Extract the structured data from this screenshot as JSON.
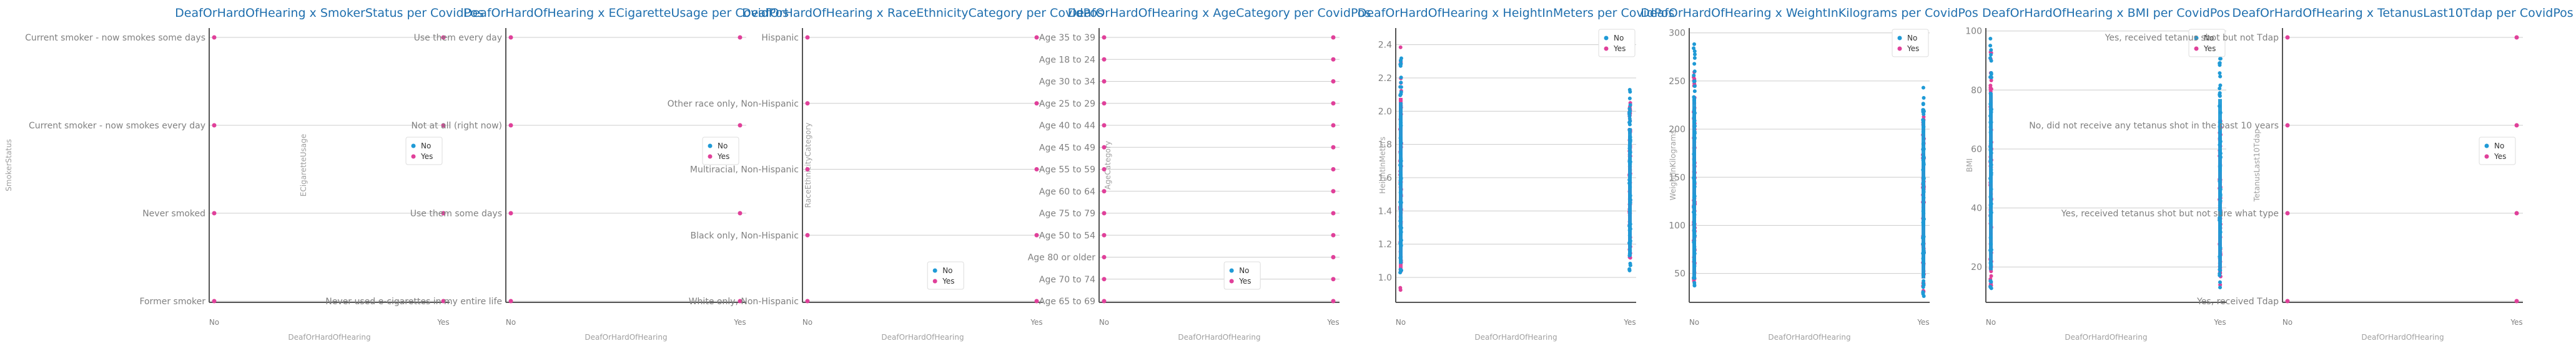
{
  "colors": {
    "No": "#1f9ad6",
    "Yes": "#e0409a",
    "grid": "#cccccc",
    "axis": "#555555",
    "title": "#1f6fae"
  },
  "chart_data": [
    {
      "type": "scatter",
      "title": "DeafOrHardOfHearing x SmokerStatus per CovidPos",
      "xlabel": "DeafOrHardOfHearing",
      "ylabel": "SmokerStatus",
      "x_categories": [
        "No",
        "Yes"
      ],
      "y_categories": [
        "Former smoker",
        "Never smoked",
        "Current smoker - now smokes every day",
        "Current smoker - now smokes some days"
      ],
      "legend": [
        "No",
        "Yes"
      ],
      "legend_position": "right",
      "points": [
        {
          "x": "No",
          "y": "Current smoker - now smokes some days",
          "series": "Yes"
        },
        {
          "x": "No",
          "y": "Current smoker - now smokes every day",
          "series": "Yes"
        },
        {
          "x": "No",
          "y": "Never smoked",
          "series": "Yes"
        },
        {
          "x": "No",
          "y": "Former smoker",
          "series": "Yes"
        },
        {
          "x": "Yes",
          "y": "Current smoker - now smokes some days",
          "series": "Yes"
        },
        {
          "x": "Yes",
          "y": "Current smoker - now smokes every day",
          "series": "Yes"
        },
        {
          "x": "Yes",
          "y": "Never smoked",
          "series": "Yes"
        },
        {
          "x": "Yes",
          "y": "Former smoker",
          "series": "Yes"
        }
      ]
    },
    {
      "type": "scatter",
      "title": "DeafOrHardOfHearing x ECigaretteUsage per CovidPos",
      "xlabel": "DeafOrHardOfHearing",
      "ylabel": "ECigaretteUsage",
      "x_categories": [
        "No",
        "Yes"
      ],
      "y_categories": [
        "Never used e-cigarettes in my entire life",
        "Use them some days",
        "Not at all (right now)",
        "Use them every day"
      ],
      "legend": [
        "No",
        "Yes"
      ],
      "legend_position": "right",
      "points": [
        {
          "x": "No",
          "y": "Use them every day",
          "series": "Yes"
        },
        {
          "x": "No",
          "y": "Not at all (right now)",
          "series": "Yes"
        },
        {
          "x": "No",
          "y": "Use them some days",
          "series": "Yes"
        },
        {
          "x": "No",
          "y": "Never used e-cigarettes in my entire life",
          "series": "Yes"
        },
        {
          "x": "Yes",
          "y": "Use them every day",
          "series": "Yes"
        },
        {
          "x": "Yes",
          "y": "Not at all (right now)",
          "series": "Yes"
        },
        {
          "x": "Yes",
          "y": "Use them some days",
          "series": "Yes"
        },
        {
          "x": "Yes",
          "y": "Never used e-cigarettes in my entire life",
          "series": "Yes"
        }
      ]
    },
    {
      "type": "scatter",
      "title": "DeafOrHardOfHearing x RaceEthnicityCategory per CovidPos",
      "xlabel": "DeafOrHardOfHearing",
      "ylabel": "RaceEthnicityCategory",
      "x_categories": [
        "No",
        "Yes"
      ],
      "y_categories": [
        "White only, Non-Hispanic",
        "Black only, Non-Hispanic",
        "Multiracial, Non-Hispanic",
        "Other race only, Non-Hispanic",
        "Hispanic"
      ],
      "legend": [
        "No",
        "Yes"
      ],
      "legend_position": "right",
      "points": [
        {
          "x": "No",
          "y": "Hispanic",
          "series": "Yes"
        },
        {
          "x": "No",
          "y": "Other race only, Non-Hispanic",
          "series": "Yes"
        },
        {
          "x": "No",
          "y": "Multiracial, Non-Hispanic",
          "series": "Yes"
        },
        {
          "x": "No",
          "y": "Black only, Non-Hispanic",
          "series": "Yes"
        },
        {
          "x": "No",
          "y": "White only, Non-Hispanic",
          "series": "Yes"
        },
        {
          "x": "Yes",
          "y": "Hispanic",
          "series": "Yes"
        },
        {
          "x": "Yes",
          "y": "Other race only, Non-Hispanic",
          "series": "Yes"
        },
        {
          "x": "Yes",
          "y": "Multiracial, Non-Hispanic",
          "series": "Yes"
        },
        {
          "x": "Yes",
          "y": "Black only, Non-Hispanic",
          "series": "Yes"
        },
        {
          "x": "Yes",
          "y": "White only, Non-Hispanic",
          "series": "Yes"
        }
      ]
    },
    {
      "type": "scatter",
      "title": "DeafOrHardOfHearing x AgeCategory per CovidPos",
      "xlabel": "DeafOrHardOfHearing",
      "ylabel": "AgeCategory",
      "x_categories": [
        "No",
        "Yes"
      ],
      "y_categories": [
        "Age 65 to 69",
        "Age 70 to 74",
        "Age 80 or older",
        "Age 50 to 54",
        "Age 75 to 79",
        "Age 60 to 64",
        "Age 55 to 59",
        "Age 45 to 49",
        "Age 40 to 44",
        "Age 25 to 29",
        "Age 30 to 34",
        "Age 18 to 24",
        "Age 35 to 39"
      ],
      "legend": [
        "No",
        "Yes"
      ],
      "legend_position": "lower right",
      "points": [
        {
          "x": "No",
          "y": "Age 35 to 39",
          "series": "Yes"
        },
        {
          "x": "No",
          "y": "Age 18 to 24",
          "series": "Yes"
        },
        {
          "x": "No",
          "y": "Age 30 to 34",
          "series": "Yes"
        },
        {
          "x": "No",
          "y": "Age 25 to 29",
          "series": "Yes"
        },
        {
          "x": "No",
          "y": "Age 40 to 44",
          "series": "Yes"
        },
        {
          "x": "No",
          "y": "Age 45 to 49",
          "series": "Yes"
        },
        {
          "x": "No",
          "y": "Age 55 to 59",
          "series": "Yes"
        },
        {
          "x": "No",
          "y": "Age 60 to 64",
          "series": "Yes"
        },
        {
          "x": "No",
          "y": "Age 75 to 79",
          "series": "Yes"
        },
        {
          "x": "No",
          "y": "Age 50 to 54",
          "series": "Yes"
        },
        {
          "x": "No",
          "y": "Age 80 or older",
          "series": "Yes"
        },
        {
          "x": "No",
          "y": "Age 70 to 74",
          "series": "Yes"
        },
        {
          "x": "No",
          "y": "Age 65 to 69",
          "series": "Yes"
        },
        {
          "x": "Yes",
          "y": "Age 35 to 39",
          "series": "Yes"
        },
        {
          "x": "Yes",
          "y": "Age 18 to 24",
          "series": "Yes"
        },
        {
          "x": "Yes",
          "y": "Age 30 to 34",
          "series": "Yes"
        },
        {
          "x": "Yes",
          "y": "Age 25 to 29",
          "series": "Yes"
        },
        {
          "x": "Yes",
          "y": "Age 40 to 44",
          "series": "Yes"
        },
        {
          "x": "Yes",
          "y": "Age 45 to 49",
          "series": "Yes"
        },
        {
          "x": "Yes",
          "y": "Age 55 to 59",
          "series": "Yes"
        },
        {
          "x": "Yes",
          "y": "Age 60 to 64",
          "series": "Yes"
        },
        {
          "x": "Yes",
          "y": "Age 75 to 79",
          "series": "Yes"
        },
        {
          "x": "Yes",
          "y": "Age 50 to 54",
          "series": "Yes"
        },
        {
          "x": "Yes",
          "y": "Age 80 or older",
          "series": "Yes"
        },
        {
          "x": "Yes",
          "y": "Age 70 to 74",
          "series": "Yes"
        },
        {
          "x": "Yes",
          "y": "Age 65 to 69",
          "series": "Yes"
        }
      ]
    },
    {
      "type": "scatter",
      "title": "DeafOrHardOfHearing x HeightInMeters per CovidPos",
      "xlabel": "DeafOrHardOfHearing",
      "ylabel": "HeightInMeters",
      "x_categories": [
        "No",
        "Yes"
      ],
      "y_ticks": [
        "1.0",
        "1.2",
        "1.4",
        "1.6",
        "1.8",
        "2.0",
        "2.2",
        "2.4"
      ],
      "ylim": [
        0.85,
        2.5
      ],
      "legend": [
        "No",
        "Yes"
      ],
      "legend_position": "upper right",
      "columns": [
        {
          "x": "No",
          "series": "Yes",
          "min": 0.91,
          "max": 2.41
        },
        {
          "x": "No",
          "series": "No",
          "min": 0.97,
          "max": 2.36
        },
        {
          "x": "Yes",
          "series": "Yes",
          "min": 1.11,
          "max": 2.06
        },
        {
          "x": "Yes",
          "series": "No",
          "min": 1.04,
          "max": 2.14
        }
      ]
    },
    {
      "type": "scatter",
      "title": "DeafOrHardOfHearing x WeightInKilograms per CovidPos",
      "xlabel": "DeafOrHardOfHearing",
      "ylabel": "WeightInKilograms",
      "x_categories": [
        "No",
        "Yes"
      ],
      "y_ticks": [
        "50",
        "100",
        "150",
        "200",
        "250",
        "300"
      ],
      "ylim": [
        20,
        305
      ],
      "legend": [
        "No",
        "Yes"
      ],
      "legend_position": "upper right",
      "columns": [
        {
          "x": "No",
          "series": "Yes",
          "min": 28,
          "max": 275
        },
        {
          "x": "No",
          "series": "No",
          "min": 24,
          "max": 292
        },
        {
          "x": "Yes",
          "series": "Yes",
          "min": 30,
          "max": 215
        },
        {
          "x": "Yes",
          "series": "No",
          "min": 26,
          "max": 262
        }
      ]
    },
    {
      "type": "scatter",
      "title": "DeafOrHardOfHearing x BMI per CovidPos",
      "xlabel": "DeafOrHardOfHearing",
      "ylabel": "BMI",
      "x_categories": [
        "No",
        "Yes"
      ],
      "y_ticks": [
        "20",
        "40",
        "60",
        "80",
        "100"
      ],
      "ylim": [
        8,
        101
      ],
      "legend": [
        "No",
        "Yes"
      ],
      "legend_position": "upper right",
      "columns": [
        {
          "x": "No",
          "series": "Yes",
          "min": 12,
          "max": 97
        },
        {
          "x": "No",
          "series": "No",
          "min": 12,
          "max": 98
        },
        {
          "x": "Yes",
          "series": "Yes",
          "min": 13,
          "max": 70
        },
        {
          "x": "Yes",
          "series": "No",
          "min": 13,
          "max": 95
        }
      ]
    },
    {
      "type": "scatter",
      "title": "DeafOrHardOfHearing x TetanusLast10Tdap per CovidPos",
      "xlabel": "DeafOrHardOfHearing",
      "ylabel": "TetanusLast10Tdap",
      "x_categories": [
        "No",
        "Yes"
      ],
      "y_categories": [
        "Yes, received Tdap",
        "Yes, received tetanus shot but not sure what type",
        "No, did not receive any tetanus shot in the past 10 years",
        "Yes, received tetanus shot but not Tdap"
      ],
      "legend": [
        "No",
        "Yes"
      ],
      "legend_position": "right",
      "points": [
        {
          "x": "No",
          "y": "Yes, received tetanus shot but not Tdap",
          "series": "Yes"
        },
        {
          "x": "No",
          "y": "No, did not receive any tetanus shot in the past 10 years",
          "series": "Yes"
        },
        {
          "x": "No",
          "y": "Yes, received tetanus shot but not sure what type",
          "series": "Yes"
        },
        {
          "x": "No",
          "y": "Yes, received Tdap",
          "series": "Yes"
        },
        {
          "x": "Yes",
          "y": "Yes, received tetanus shot but not Tdap",
          "series": "Yes"
        },
        {
          "x": "Yes",
          "y": "No, did not receive any tetanus shot in the past 10 years",
          "series": "Yes"
        },
        {
          "x": "Yes",
          "y": "Yes, received tetanus shot but not sure what type",
          "series": "Yes"
        },
        {
          "x": "Yes",
          "y": "Yes, received Tdap",
          "series": "Yes"
        }
      ]
    }
  ]
}
